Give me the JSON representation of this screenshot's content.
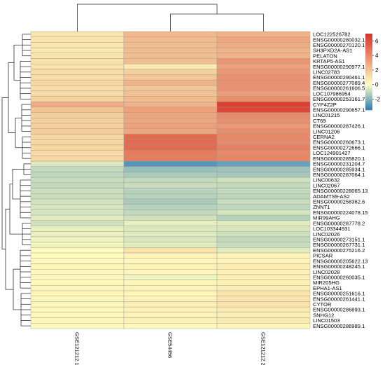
{
  "chart_data": {
    "type": "heatmap",
    "columns": [
      "GSE121212.1",
      "GSE54456",
      "GSE121212.2"
    ],
    "rows": [
      {
        "label": "LOC122526782",
        "values": [
          0.9,
          2.4,
          2.6
        ]
      },
      {
        "label": "ENSG00000280032.1",
        "values": [
          0.9,
          2.3,
          3.0
        ]
      },
      {
        "label": "ENSG00000270120.1",
        "values": [
          0.8,
          2.2,
          2.8
        ]
      },
      {
        "label": "SH3PXD2A-AS1",
        "values": [
          0.8,
          2.3,
          2.6
        ]
      },
      {
        "label": "PELATON",
        "values": [
          0.9,
          2.2,
          2.6
        ]
      },
      {
        "label": "KRTAP5-AS1",
        "values": [
          1.0,
          2.2,
          3.6
        ]
      },
      {
        "label": "ENSG00000290977.1",
        "values": [
          1.0,
          0.7,
          3.2
        ]
      },
      {
        "label": "LINC02783",
        "values": [
          1.2,
          1.6,
          3.5
        ]
      },
      {
        "label": "ENSG00000290461.1",
        "values": [
          1.2,
          2.0,
          3.7
        ]
      },
      {
        "label": "ENSG00000277089.4",
        "values": [
          1.4,
          2.6,
          3.7
        ]
      },
      {
        "label": "ENSG00000261606.5",
        "values": [
          1.1,
          1.9,
          3.7
        ]
      },
      {
        "label": "LOC107986954",
        "values": [
          1.3,
          2.1,
          3.3
        ]
      },
      {
        "label": "ENSG00000253161.7",
        "values": [
          1.5,
          2.3,
          3.8
        ]
      },
      {
        "label": "CYP4Z2P",
        "values": [
          2.8,
          2.6,
          6.5
        ]
      },
      {
        "label": "ENSG00000290657.1",
        "values": [
          2.0,
          3.2,
          6.2
        ]
      },
      {
        "label": "LINC01215",
        "values": [
          1.6,
          3.0,
          4.0
        ]
      },
      {
        "label": "CT69",
        "values": [
          1.6,
          3.0,
          3.8
        ]
      },
      {
        "label": "ENSG00000287426.1",
        "values": [
          1.6,
          3.2,
          3.5
        ]
      },
      {
        "label": "LINC01206",
        "values": [
          1.7,
          3.0,
          3.9
        ]
      },
      {
        "label": "CERNA2",
        "values": [
          1.4,
          5.0,
          4.0
        ]
      },
      {
        "label": "ENSG00000260673.1",
        "values": [
          1.4,
          5.0,
          4.0
        ]
      },
      {
        "label": "ENSG00000272666.1",
        "values": [
          1.4,
          5.0,
          4.3
        ]
      },
      {
        "label": "LOC124901427",
        "values": [
          1.3,
          4.5,
          4.0
        ]
      },
      {
        "label": "ENSG00000285820.1",
        "values": [
          1.4,
          4.4,
          4.1
        ]
      },
      {
        "label": "ENSG00000231204.7",
        "values": [
          -0.6,
          -2.8,
          -2.5
        ]
      },
      {
        "label": "ENSG00000285934.1",
        "values": [
          -1.0,
          -1.7,
          -1.6
        ]
      },
      {
        "label": "ENSG00000287064.1",
        "values": [
          -1.1,
          -1.4,
          -1.5
        ]
      },
      {
        "label": "LINC00632",
        "values": [
          -0.9,
          -1.0,
          -0.8
        ]
      },
      {
        "label": "LINC02067",
        "values": [
          -1.0,
          -0.9,
          -1.0
        ]
      },
      {
        "label": "ENSG00000228065.13",
        "values": [
          -0.9,
          -1.2,
          -1.0
        ]
      },
      {
        "label": "ADAMTS9-AS2",
        "values": [
          -0.9,
          -1.2,
          -1.1
        ]
      },
      {
        "label": "ENSG00000258362.6",
        "values": [
          -0.8,
          -1.4,
          -0.9
        ]
      },
      {
        "label": "ZNNT1",
        "values": [
          -0.7,
          -1.2,
          -1.1
        ]
      },
      {
        "label": "ENSG00000224078.15",
        "values": [
          -0.7,
          -1.0,
          -0.7
        ]
      },
      {
        "label": "MIR99AHG",
        "values": [
          -0.5,
          -0.8,
          -1.2
        ]
      },
      {
        "label": "ENSG00000287778.2",
        "values": [
          -0.8,
          -0.4,
          -0.5
        ]
      },
      {
        "label": "LOC103344931",
        "values": [
          -0.4,
          -0.6,
          -0.6
        ]
      },
      {
        "label": "LINC02026",
        "values": [
          -0.4,
          -0.5,
          -0.8
        ]
      },
      {
        "label": "ENSG00000273151.1",
        "values": [
          -0.3,
          -0.6,
          -1.0
        ]
      },
      {
        "label": "ENSG00000267731.1",
        "values": [
          -0.3,
          -0.5,
          -0.9
        ]
      },
      {
        "label": "ENSG00000275216.2",
        "values": [
          0.1,
          1.0,
          -0.5
        ]
      },
      {
        "label": "PICSAR",
        "values": [
          0.1,
          0.4,
          0.4
        ]
      },
      {
        "label": "ENSG00000205622.13",
        "values": [
          0.2,
          0.3,
          0.4
        ]
      },
      {
        "label": "ENSG00000248245.1",
        "values": [
          0.3,
          0.4,
          0.6
        ]
      },
      {
        "label": "LINC02028",
        "values": [
          0.2,
          0.3,
          0.5
        ]
      },
      {
        "label": "ENSG00000260035.1",
        "values": [
          0.2,
          -0.3,
          0.6
        ]
      },
      {
        "label": "MIR205HG",
        "values": [
          0.2,
          0.3,
          0.4
        ]
      },
      {
        "label": "EPHA1-AS1",
        "values": [
          0.3,
          0.4,
          0.6
        ]
      },
      {
        "label": "ENSG00000251616.1",
        "values": [
          0.4,
          0.3,
          0.9
        ]
      },
      {
        "label": "ENSG00000261441.1",
        "values": [
          0.2,
          0.4,
          0.9
        ]
      },
      {
        "label": "CYTOR",
        "values": [
          0.3,
          0.6,
          1.0
        ]
      },
      {
        "label": "ENSG00000286893.1",
        "values": [
          0.3,
          0.5,
          0.7
        ]
      },
      {
        "label": "SNHG12",
        "values": [
          0.3,
          0.4,
          0.6
        ]
      },
      {
        "label": "LINC01503",
        "values": [
          0.3,
          0.5,
          0.7
        ]
      },
      {
        "label": "ENSG00000286989.1",
        "values": [
          0.2,
          0.2,
          0.3
        ]
      }
    ],
    "colorbar": {
      "range": [
        -3.5,
        7
      ],
      "ticks": [
        -2,
        0,
        2,
        4,
        6
      ],
      "tick_labels": [
        "-2",
        "0",
        "2",
        "4",
        "6"
      ],
      "colors": [
        "#2c7bb6",
        "#ffffbf",
        "#d73027"
      ]
    },
    "dendrogram_columns": "top",
    "dendrogram_rows": "left",
    "grid": true,
    "legend_position": "top-right"
  }
}
